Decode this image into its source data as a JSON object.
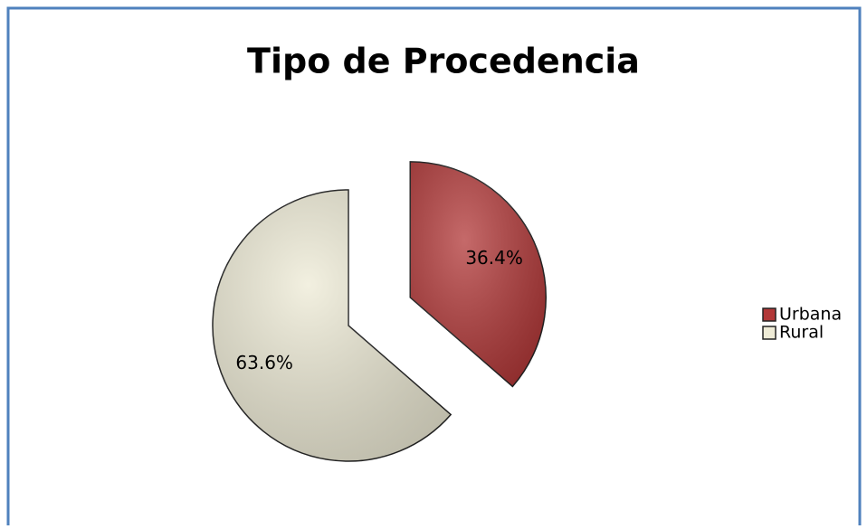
{
  "chart_data": {
    "type": "pie",
    "title": "Tipo de Procedencia",
    "categories": [
      "Urbana",
      "Rural"
    ],
    "values": [
      36.4,
      63.6
    ],
    "value_labels": [
      "36.4%",
      "63.6%"
    ],
    "colors": [
      "#b23838",
      "#eeebd6"
    ],
    "legend": "right"
  }
}
